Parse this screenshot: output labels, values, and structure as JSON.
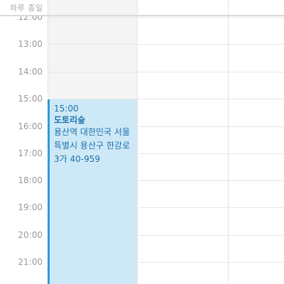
{
  "allday": {
    "label": "하루 종일"
  },
  "timeline": {
    "hours": [
      {
        "label": "12:00"
      },
      {
        "label": "13:00"
      },
      {
        "label": "14:00"
      },
      {
        "label": "15:00"
      },
      {
        "label": "16:00"
      },
      {
        "label": "17:00"
      },
      {
        "label": "18:00"
      },
      {
        "label": "19:00"
      },
      {
        "label": "20:00"
      },
      {
        "label": "21:00"
      }
    ]
  },
  "event": {
    "time": "15:00",
    "title": "도토리숲",
    "location": "용산역 대한민국 서울특별시 용산구 한강로3가 40-959"
  },
  "colors": {
    "event_background": "#cde9f8",
    "event_accent": "#2f9bd6",
    "event_text": "#1f6fa8"
  }
}
